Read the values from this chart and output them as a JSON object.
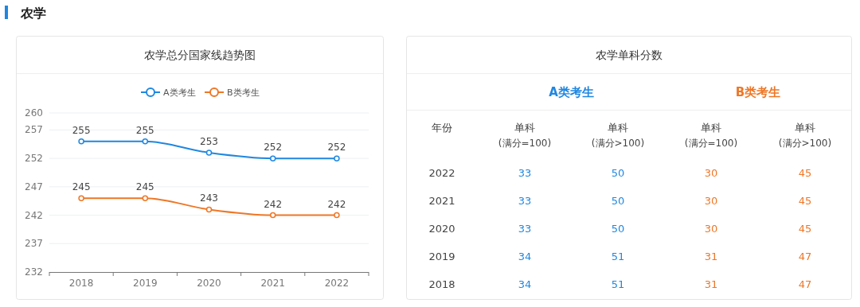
{
  "chart_data": [
    {
      "type": "line",
      "title": "农学总分国家线趋势图",
      "annotations": [
        "农学"
      ],
      "categories": [
        "2018",
        "2019",
        "2020",
        "2021",
        "2022"
      ],
      "series": [
        {
          "name": "A类考生",
          "color": "#1f87e0",
          "values": [
            255,
            255,
            253,
            252,
            252
          ]
        },
        {
          "name": "B类考生",
          "color": "#ee7726",
          "values": [
            245,
            245,
            243,
            242,
            242
          ]
        }
      ],
      "ylim": [
        232,
        260
      ],
      "yticks": [
        232,
        237,
        242,
        247,
        252,
        257,
        260
      ],
      "grid": "y",
      "legend": "top",
      "marker": "circle",
      "data_labels": true
    },
    {
      "type": "heatmap",
      "data_labels": true,
      "title": "农学单科分数",
      "ylabel": "年份",
      "annotations": [
        "A类考生",
        "B类考生"
      ],
      "categories": [
        "单科\n(满分=100)",
        "单科\n(满分>100)",
        "单科\n(满分=100)",
        "单科\n(满分>100)"
      ],
      "y_categories": [
        "2022",
        "2021",
        "2020",
        "2019",
        "2018"
      ],
      "colors": [
        "#1f87e0",
        "#1f87e0",
        "#ee7726",
        "#ee7726"
      ],
      "cells": [
        [
          33,
          50,
          30,
          45
        ],
        [
          33,
          50,
          30,
          45
        ],
        [
          33,
          50,
          30,
          45
        ],
        [
          34,
          51,
          31,
          47
        ],
        [
          34,
          51,
          31,
          47
        ]
      ]
    }
  ]
}
